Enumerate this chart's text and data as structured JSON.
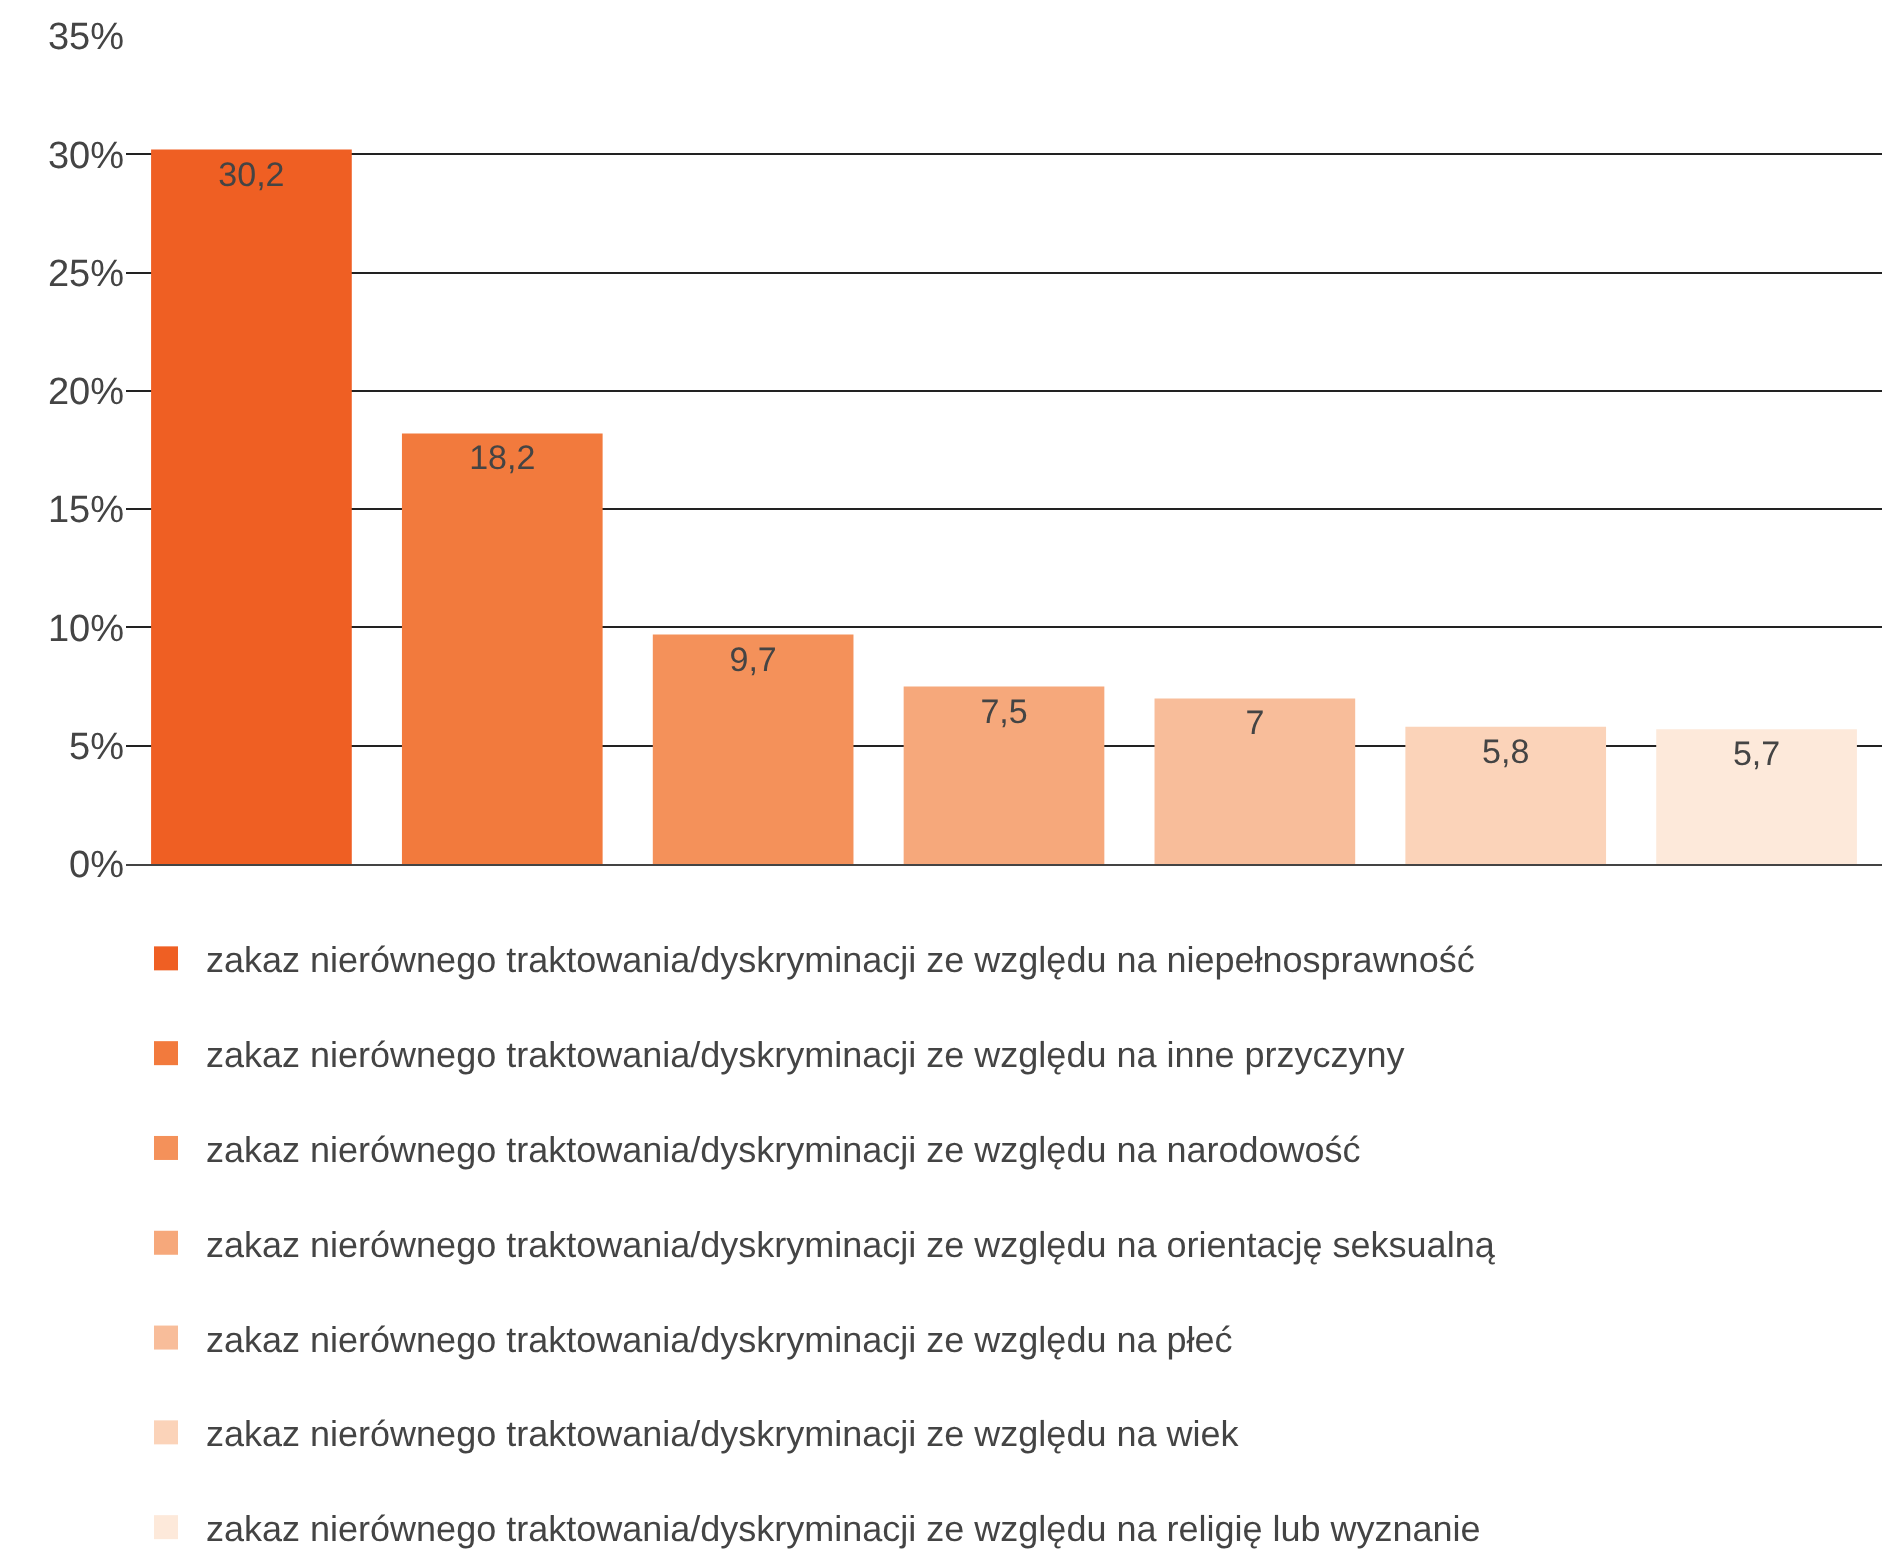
{
  "chart_data": {
    "type": "bar",
    "categories": [
      null,
      null,
      null,
      null,
      null,
      null,
      null
    ],
    "series": [
      {
        "name": "zakaz nierównego traktowania/dyskryminacji ze względu na niepełnosprawność",
        "color": "#ef5f23",
        "values": [
          30.2,
          null,
          null,
          null,
          null,
          null,
          null
        ],
        "value_labels": [
          "30,2",
          null,
          null,
          null,
          null,
          null,
          null
        ]
      },
      {
        "name": "zakaz nierównego traktowania/dyskryminacji ze względu na inne przyczyny",
        "color": "#f27a3d",
        "values": [
          null,
          18.2,
          null,
          null,
          null,
          null,
          null
        ],
        "value_labels": [
          null,
          "18,2",
          null,
          null,
          null,
          null,
          null
        ]
      },
      {
        "name": "zakaz nierównego traktowania/dyskryminacji ze względu na narodowość",
        "color": "#f4915a",
        "values": [
          null,
          null,
          9.7,
          null,
          null,
          null,
          null
        ],
        "value_labels": [
          null,
          null,
          "9,7",
          null,
          null,
          null,
          null
        ]
      },
      {
        "name": "zakaz nierównego traktowania/dyskryminacji ze względu na orientację seksualną",
        "color": "#f6a87b",
        "values": [
          null,
          null,
          null,
          7.5,
          null,
          null,
          null
        ],
        "value_labels": [
          null,
          null,
          null,
          "7,5",
          null,
          null,
          null
        ]
      },
      {
        "name": "zakaz nierównego traktowania/dyskryminacji ze względu na płeć",
        "color": "#f8bd9a",
        "values": [
          null,
          null,
          null,
          null,
          7,
          null,
          null
        ],
        "value_labels": [
          null,
          null,
          null,
          null,
          "7",
          null,
          null
        ]
      },
      {
        "name": "zakaz nierównego traktowania/dyskryminacji ze względu na wiek",
        "color": "#fbd3b9",
        "values": [
          null,
          null,
          null,
          null,
          null,
          5.8,
          null
        ],
        "value_labels": [
          null,
          null,
          null,
          null,
          null,
          "5,8",
          null
        ]
      },
      {
        "name": "zakaz nierównego traktowania/dyskryminacji ze względu na religię lub wyznanie",
        "color": "#fde9da",
        "values": [
          null,
          null,
          null,
          null,
          null,
          null,
          5.7
        ],
        "value_labels": [
          null,
          null,
          null,
          null,
          null,
          null,
          "5,7"
        ]
      }
    ],
    "ylim": [
      0,
      35
    ],
    "yticks": [
      {
        "value": 0,
        "label": "0%"
      },
      {
        "value": 5,
        "label": "5%"
      },
      {
        "value": 10,
        "label": "10%"
      },
      {
        "value": 15,
        "label": "15%"
      },
      {
        "value": 20,
        "label": "20%"
      },
      {
        "value": 25,
        "label": "25%"
      },
      {
        "value": 30,
        "label": "30%"
      },
      {
        "value": 35,
        "label": "35%"
      }
    ],
    "grid": "y",
    "legend": "bottom",
    "tick_labels": "y"
  }
}
